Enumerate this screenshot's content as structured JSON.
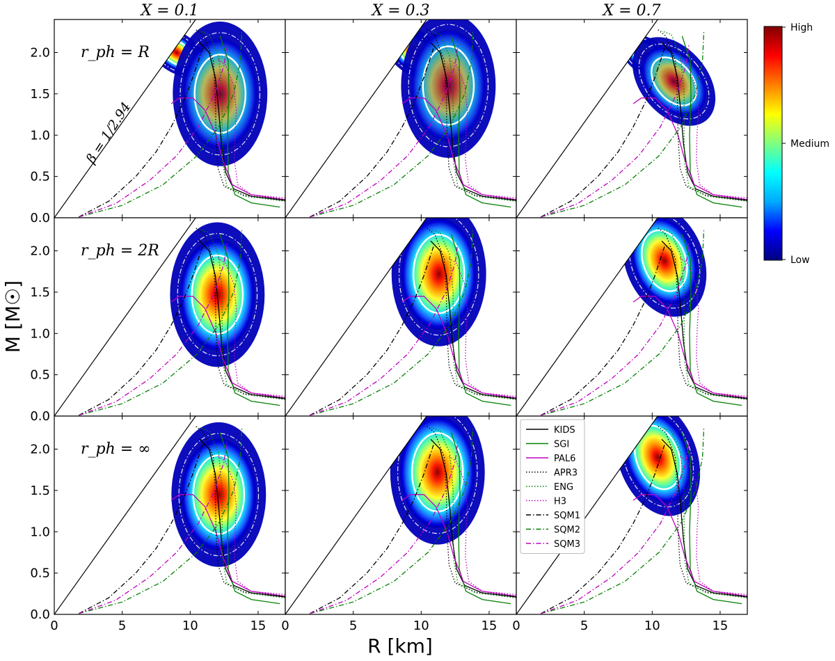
{
  "chart_data": {
    "type": "contour-grid",
    "column_titles": [
      "X = 0.1",
      "X = 0.3",
      "X = 0.7"
    ],
    "row_labels": [
      "r_ph = R",
      "r_ph = 2R",
      "r_ph = ∞"
    ],
    "xlabel": "R [km]",
    "ylabel": "M [M☉]",
    "xlim": [
      0,
      17
    ],
    "ylim": [
      0,
      2.4
    ],
    "xticks": [
      0,
      5,
      10,
      15
    ],
    "yticks": [
      0.0,
      0.5,
      1.0,
      1.5,
      2.0
    ],
    "beta_line": {
      "label": "β = 1/2.94",
      "slope_Msun_per_km": 0.2307
    },
    "colorbar": {
      "labels": [
        "High",
        "Medium",
        "Low"
      ],
      "colors": [
        "#000080",
        "#0000ff",
        "#00aaff",
        "#00ffff",
        "#7fff7f",
        "#ffff00",
        "#ff7f00",
        "#ff0000",
        "#800000"
      ]
    },
    "legend": [
      {
        "name": "KIDS",
        "color": "#000000",
        "dash": "solid"
      },
      {
        "name": "SGI",
        "color": "#008000",
        "dash": "solid"
      },
      {
        "name": "PAL6",
        "color": "#bf00bf",
        "dash": "solid"
      },
      {
        "name": "APR3",
        "color": "#000000",
        "dash": "dotted"
      },
      {
        "name": "ENG",
        "color": "#008000",
        "dash": "dotted"
      },
      {
        "name": "H3",
        "color": "#bf00bf",
        "dash": "dotted"
      },
      {
        "name": "SQM1",
        "color": "#000000",
        "dash": "dashdot"
      },
      {
        "name": "SQM2",
        "color": "#008000",
        "dash": "dashdot"
      },
      {
        "name": "SQM3",
        "color": "#bf00bf",
        "dash": "dashdot"
      }
    ],
    "eos_curves": {
      "KIDS": [
        [
          17,
          0.21
        ],
        [
          14.5,
          0.26
        ],
        [
          13.2,
          0.35
        ],
        [
          12.6,
          0.55
        ],
        [
          12.3,
          0.9
        ],
        [
          12.1,
          1.3
        ],
        [
          11.85,
          1.7
        ],
        [
          11.4,
          2.0
        ],
        [
          10.7,
          2.12
        ]
      ],
      "SGI": [
        [
          16.6,
          0.13
        ],
        [
          14.5,
          0.18
        ],
        [
          13.3,
          0.28
        ],
        [
          12.8,
          0.55
        ],
        [
          12.75,
          1.0
        ],
        [
          12.85,
          1.5
        ],
        [
          12.8,
          1.9
        ],
        [
          12.2,
          2.2
        ]
      ],
      "PAL6": [
        [
          17,
          0.22
        ],
        [
          14.5,
          0.28
        ],
        [
          13.1,
          0.4
        ],
        [
          12.4,
          0.7
        ],
        [
          11.9,
          1.0
        ],
        [
          11.1,
          1.3
        ],
        [
          10.2,
          1.45
        ],
        [
          9.2,
          1.45
        ],
        [
          8.6,
          1.38
        ]
      ],
      "APR3": [
        [
          17,
          0.22
        ],
        [
          14,
          0.27
        ],
        [
          12.5,
          0.38
        ],
        [
          12.05,
          0.6
        ],
        [
          11.9,
          1.0
        ],
        [
          11.85,
          1.5
        ],
        [
          11.7,
          1.9
        ],
        [
          11.0,
          2.2
        ],
        [
          10.4,
          2.28
        ]
      ],
      "ENG": [
        [
          17,
          0.2
        ],
        [
          14,
          0.26
        ],
        [
          12.7,
          0.38
        ],
        [
          12.4,
          0.65
        ],
        [
          12.35,
          1.0
        ],
        [
          12.35,
          1.5
        ],
        [
          12.1,
          1.95
        ],
        [
          11.4,
          2.22
        ],
        [
          10.7,
          2.26
        ]
      ],
      "H3": [
        [
          17,
          0.24
        ],
        [
          14.5,
          0.28
        ],
        [
          13.5,
          0.4
        ],
        [
          13.25,
          0.7
        ],
        [
          13.3,
          1.0
        ],
        [
          13.4,
          1.3
        ],
        [
          13.2,
          1.6
        ],
        [
          12.6,
          1.85
        ],
        [
          12.0,
          1.92
        ]
      ],
      "SQM1": [
        [
          1.8,
          0.01
        ],
        [
          4,
          0.2
        ],
        [
          6,
          0.5
        ],
        [
          7.5,
          0.8
        ],
        [
          8.6,
          1.1
        ],
        [
          9.5,
          1.4
        ],
        [
          10.2,
          1.7
        ],
        [
          10.7,
          1.95
        ],
        [
          10.9,
          2.05
        ]
      ],
      "SQM2": [
        [
          1.8,
          0.01
        ],
        [
          5,
          0.15
        ],
        [
          8,
          0.4
        ],
        [
          10.5,
          0.75
        ],
        [
          12.1,
          1.1
        ],
        [
          13.2,
          1.5
        ],
        [
          13.7,
          1.9
        ],
        [
          13.8,
          2.25
        ]
      ],
      "SQM3": [
        [
          1.8,
          0.01
        ],
        [
          4.5,
          0.17
        ],
        [
          7,
          0.45
        ],
        [
          9,
          0.75
        ],
        [
          10.6,
          1.1
        ],
        [
          11.8,
          1.5
        ],
        [
          12.5,
          1.85
        ],
        [
          12.7,
          2.1
        ]
      ]
    },
    "panels": [
      {
        "row": 0,
        "col": 0,
        "blobs": [
          {
            "x": 9.0,
            "y": 2.0,
            "sx": 1.0,
            "sy": 0.22,
            "rot": -55,
            "w": 1.0
          },
          {
            "x": 12.2,
            "y": 1.5,
            "sx": 2.4,
            "sy": 0.5,
            "rot": 0,
            "w": 0.55
          }
        ]
      },
      {
        "row": 0,
        "col": 1,
        "blobs": [
          {
            "x": 9.5,
            "y": 2.0,
            "sx": 1.1,
            "sy": 0.22,
            "rot": -55,
            "w": 1.0
          },
          {
            "x": 12.0,
            "y": 1.6,
            "sx": 2.4,
            "sy": 0.5,
            "rot": 0,
            "w": 0.5
          }
        ]
      },
      {
        "row": 0,
        "col": 2,
        "blobs": [
          {
            "x": 9.6,
            "y": 1.95,
            "sx": 0.9,
            "sy": 0.2,
            "rot": -55,
            "w": 1.0
          },
          {
            "x": 11.6,
            "y": 1.65,
            "sx": 1.7,
            "sy": 0.35,
            "rot": -40,
            "w": 0.6
          }
        ]
      },
      {
        "row": 1,
        "col": 0,
        "blobs": [
          {
            "x": 12.0,
            "y": 1.47,
            "sx": 2.4,
            "sy": 0.5,
            "rot": 0,
            "w": 1.0
          }
        ]
      },
      {
        "row": 1,
        "col": 1,
        "blobs": [
          {
            "x": 11.3,
            "y": 1.72,
            "sx": 2.4,
            "sy": 0.5,
            "rot": 0,
            "w": 1.0
          }
        ]
      },
      {
        "row": 1,
        "col": 2,
        "blobs": [
          {
            "x": 10.9,
            "y": 1.88,
            "sx": 2.0,
            "sy": 0.4,
            "rot": -20,
            "w": 1.0
          }
        ]
      },
      {
        "row": 2,
        "col": 0,
        "blobs": [
          {
            "x": 12.1,
            "y": 1.45,
            "sx": 2.4,
            "sy": 0.5,
            "rot": 0,
            "w": 1.0
          }
        ]
      },
      {
        "row": 2,
        "col": 1,
        "blobs": [
          {
            "x": 11.2,
            "y": 1.72,
            "sx": 2.4,
            "sy": 0.5,
            "rot": 0,
            "w": 1.0
          }
        ]
      },
      {
        "row": 2,
        "col": 2,
        "blobs": [
          {
            "x": 10.4,
            "y": 1.9,
            "sx": 2.0,
            "sy": 0.42,
            "rot": -20,
            "w": 1.0
          }
        ]
      }
    ]
  }
}
